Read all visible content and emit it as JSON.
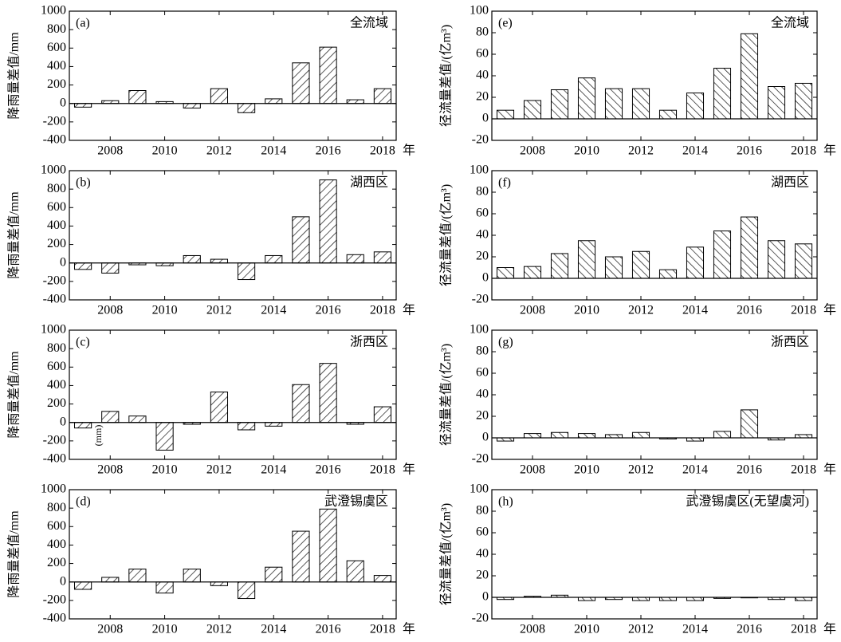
{
  "chart_data": [
    {
      "type": "bar",
      "panel": "(a)",
      "title": "全流域",
      "ylabel": "降雨量差值/mm",
      "xlabel": "年",
      "hatch": "/",
      "x": [
        2007,
        2008,
        2009,
        2010,
        2011,
        2012,
        2013,
        2014,
        2015,
        2016,
        2017,
        2018
      ],
      "values": [
        -40,
        30,
        140,
        20,
        -50,
        160,
        -100,
        50,
        440,
        610,
        40,
        160
      ],
      "xlim": [
        2006.5,
        2018.5
      ],
      "xticks": [
        2008,
        2010,
        2012,
        2014,
        2016,
        2018
      ],
      "ylim": [
        -400,
        1000
      ],
      "yticks": [
        -400,
        -200,
        0,
        200,
        400,
        600,
        800,
        1000
      ]
    },
    {
      "type": "bar",
      "panel": "(b)",
      "title": "湖西区",
      "ylabel": "降雨量差值/mm",
      "xlabel": "年",
      "hatch": "/",
      "x": [
        2007,
        2008,
        2009,
        2010,
        2011,
        2012,
        2013,
        2014,
        2015,
        2016,
        2017,
        2018
      ],
      "values": [
        -70,
        -110,
        -20,
        -30,
        80,
        40,
        -180,
        80,
        500,
        900,
        90,
        120
      ],
      "xlim": [
        2006.5,
        2018.5
      ],
      "xticks": [
        2008,
        2010,
        2012,
        2014,
        2016,
        2018
      ],
      "ylim": [
        -400,
        1000
      ],
      "yticks": [
        -400,
        -200,
        0,
        200,
        400,
        600,
        800,
        1000
      ]
    },
    {
      "type": "bar",
      "panel": "(c)",
      "title": "浙西区",
      "ylabel": "降雨量差值/mm",
      "xlabel": "年",
      "hatch": "/",
      "annotation": "(mm)",
      "x": [
        2007,
        2008,
        2009,
        2010,
        2011,
        2012,
        2013,
        2014,
        2015,
        2016,
        2017,
        2018
      ],
      "values": [
        -60,
        120,
        70,
        -300,
        -20,
        330,
        -80,
        -40,
        410,
        640,
        -20,
        170
      ],
      "xlim": [
        2006.5,
        2018.5
      ],
      "xticks": [
        2008,
        2010,
        2012,
        2014,
        2016,
        2018
      ],
      "ylim": [
        -400,
        1000
      ],
      "yticks": [
        -400,
        -200,
        0,
        200,
        400,
        600,
        800,
        1000
      ]
    },
    {
      "type": "bar",
      "panel": "(d)",
      "title": "武澄锡虞区",
      "ylabel": "降雨量差值/mm",
      "xlabel": "年",
      "hatch": "/",
      "x": [
        2007,
        2008,
        2009,
        2010,
        2011,
        2012,
        2013,
        2014,
        2015,
        2016,
        2017,
        2018
      ],
      "values": [
        -80,
        50,
        140,
        -120,
        140,
        -40,
        -180,
        160,
        550,
        790,
        230,
        70
      ],
      "xlim": [
        2006.5,
        2018.5
      ],
      "xticks": [
        2008,
        2010,
        2012,
        2014,
        2016,
        2018
      ],
      "ylim": [
        -400,
        1000
      ],
      "yticks": [
        -400,
        -200,
        0,
        200,
        400,
        600,
        800,
        1000
      ]
    },
    {
      "type": "bar",
      "panel": "(e)",
      "title": "全流域",
      "ylabel": "径流量差值/(亿m³)",
      "xlabel": "年",
      "hatch": "\\",
      "x": [
        2007,
        2008,
        2009,
        2010,
        2011,
        2012,
        2013,
        2014,
        2015,
        2016,
        2017,
        2018
      ],
      "values": [
        8,
        17,
        27,
        38,
        28,
        28,
        8,
        24,
        47,
        79,
        30,
        33
      ],
      "xlim": [
        2006.5,
        2018.5
      ],
      "xticks": [
        2008,
        2010,
        2012,
        2014,
        2016,
        2018
      ],
      "ylim": [
        -20,
        100
      ],
      "yticks": [
        -20,
        0,
        20,
        40,
        60,
        80,
        100
      ]
    },
    {
      "type": "bar",
      "panel": "(f)",
      "title": "湖西区",
      "ylabel": "径流量差值/(亿m³)",
      "xlabel": "年",
      "hatch": "\\",
      "x": [
        2007,
        2008,
        2009,
        2010,
        2011,
        2012,
        2013,
        2014,
        2015,
        2016,
        2017,
        2018
      ],
      "values": [
        10,
        11,
        23,
        35,
        20,
        25,
        8,
        29,
        44,
        57,
        35,
        32
      ],
      "xlim": [
        2006.5,
        2018.5
      ],
      "xticks": [
        2008,
        2010,
        2012,
        2014,
        2016,
        2018
      ],
      "ylim": [
        -20,
        100
      ],
      "yticks": [
        -20,
        0,
        20,
        40,
        60,
        80,
        100
      ]
    },
    {
      "type": "bar",
      "panel": "(g)",
      "title": "浙西区",
      "ylabel": "径流量差值/(亿m³)",
      "xlabel": "年",
      "hatch": "\\",
      "x": [
        2007,
        2008,
        2009,
        2010,
        2011,
        2012,
        2013,
        2014,
        2015,
        2016,
        2017,
        2018
      ],
      "values": [
        -3,
        4,
        5,
        4,
        3,
        5,
        -1,
        -3,
        6,
        26,
        -2,
        3
      ],
      "xlim": [
        2006.5,
        2018.5
      ],
      "xticks": [
        2008,
        2010,
        2012,
        2014,
        2016,
        2018
      ],
      "ylim": [
        -20,
        100
      ],
      "yticks": [
        -20,
        0,
        20,
        40,
        60,
        80,
        100
      ]
    },
    {
      "type": "bar",
      "panel": "(h)",
      "title": "武澄锡虞区(无望虞河)",
      "ylabel": "径流量差值/(亿m³)",
      "xlabel": "年",
      "hatch": "\\",
      "x": [
        2007,
        2008,
        2009,
        2010,
        2011,
        2012,
        2013,
        2014,
        2015,
        2016,
        2017,
        2018
      ],
      "values": [
        -2,
        1,
        2,
        -3,
        -2,
        -3,
        -3,
        -3,
        -1,
        -0.5,
        -2,
        -3
      ],
      "xlim": [
        2006.5,
        2018.5
      ],
      "xticks": [
        2008,
        2010,
        2012,
        2014,
        2016,
        2018
      ],
      "ylim": [
        -20,
        100
      ],
      "yticks": [
        -20,
        0,
        20,
        40,
        60,
        80,
        100
      ]
    }
  ]
}
